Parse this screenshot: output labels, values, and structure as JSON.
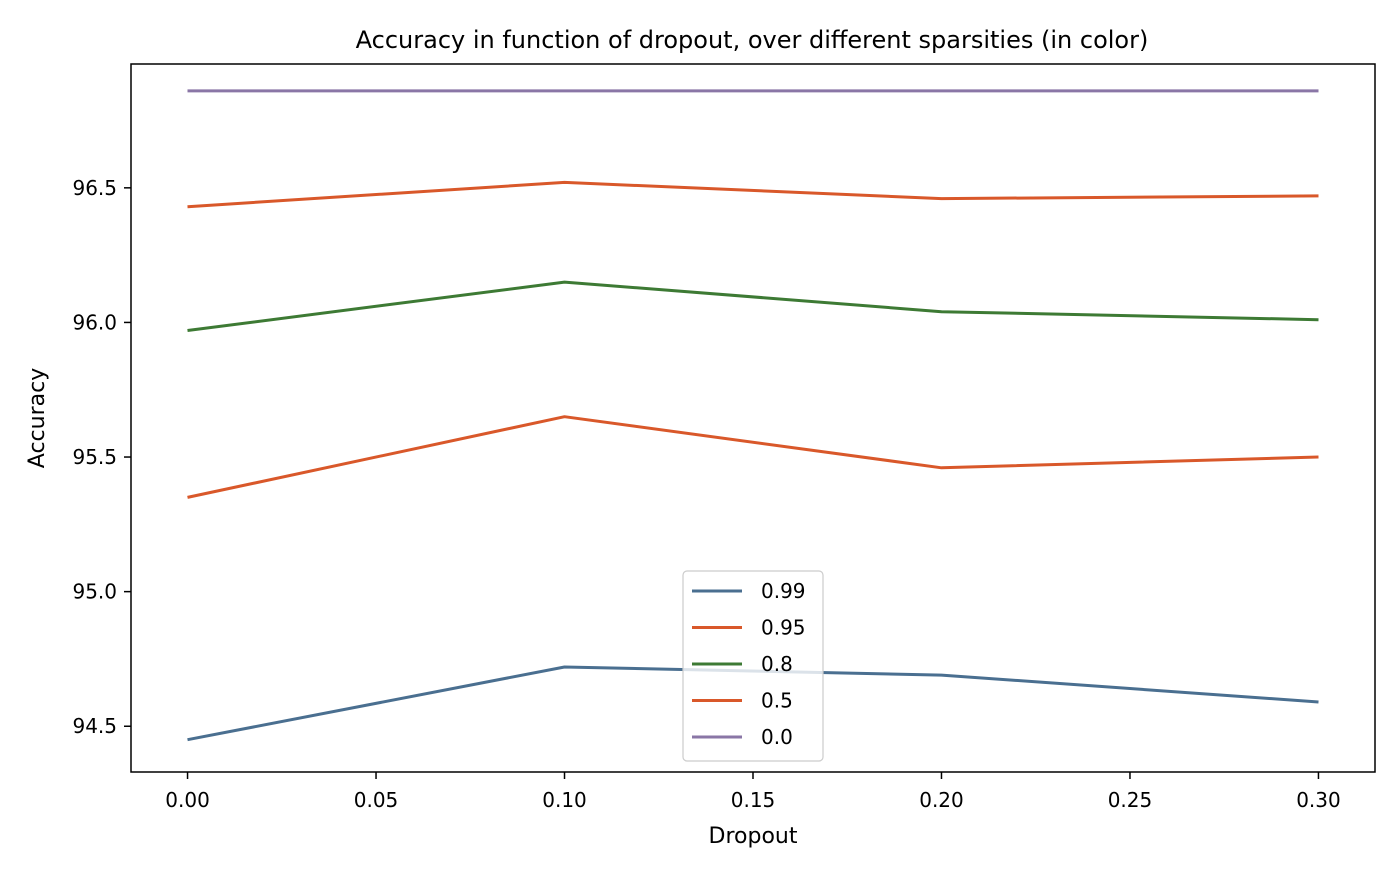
{
  "chart_data": {
    "type": "line",
    "title": "Accuracy in function of dropout, over different sparsities (in color)",
    "xlabel": "Dropout",
    "ylabel": "Accuracy",
    "x": [
      0.0,
      0.1,
      0.2,
      0.3
    ],
    "xlim": [
      -0.015,
      0.315
    ],
    "ylim": [
      94.33,
      96.96
    ],
    "xticks": [
      "0.00",
      "0.05",
      "0.10",
      "0.15",
      "0.20",
      "0.25",
      "0.30"
    ],
    "xtick_values": [
      0.0,
      0.05,
      0.1,
      0.15,
      0.2,
      0.25,
      0.3
    ],
    "yticks": [
      "94.5",
      "95.0",
      "95.5",
      "96.0",
      "96.5"
    ],
    "ytick_values": [
      94.5,
      95.0,
      95.5,
      96.0,
      96.5
    ],
    "grid": false,
    "legend_position": "lower-center",
    "series": [
      {
        "name": "0.99",
        "color": "#4a6f90",
        "values": [
          94.45,
          94.72,
          94.69,
          94.59
        ]
      },
      {
        "name": "0.95",
        "color": "#d9582a",
        "values": [
          96.43,
          96.52,
          96.46,
          96.47
        ]
      },
      {
        "name": "0.8",
        "color": "#3d7a34",
        "values": [
          95.97,
          96.15,
          96.04,
          96.01
        ]
      },
      {
        "name": "0.5",
        "color": "#d9582a",
        "values": [
          95.35,
          95.65,
          95.46,
          95.5
        ]
      },
      {
        "name": "0.0",
        "color": "#8a76a6",
        "values": [
          96.86,
          96.86,
          96.86,
          96.86
        ]
      }
    ],
    "legend_order": [
      0,
      1,
      2,
      3,
      4
    ]
  }
}
